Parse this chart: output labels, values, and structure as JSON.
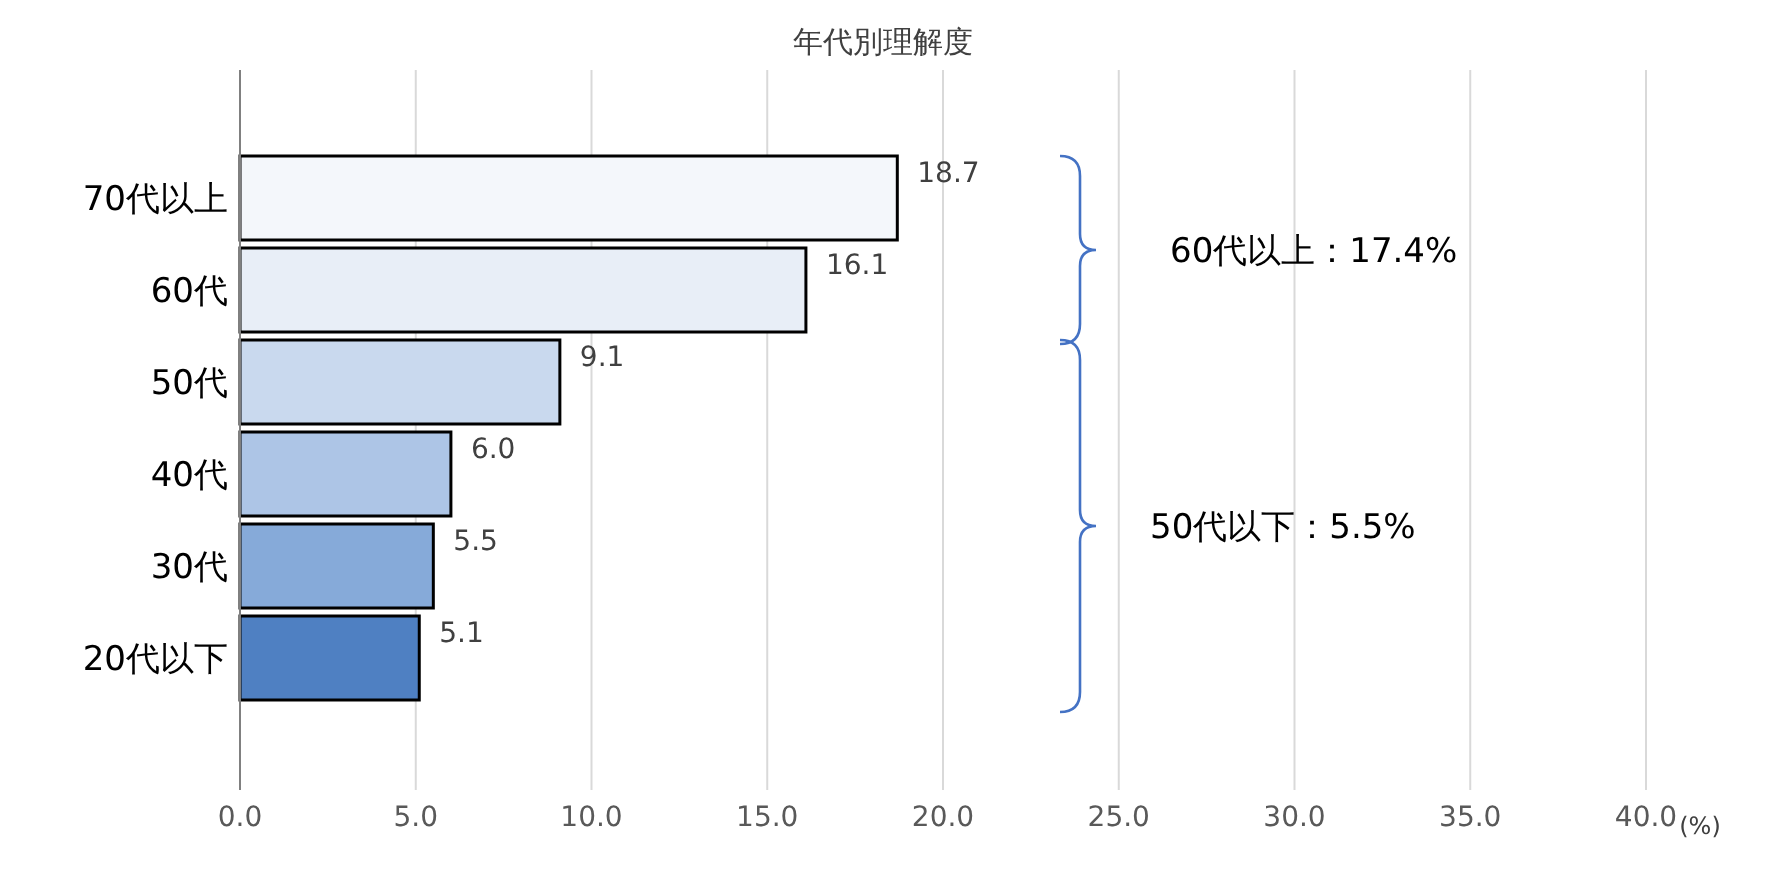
{
  "chart_data": {
    "type": "bar",
    "orientation": "horizontal",
    "title": "年代別理解度",
    "xlabel": "(%)",
    "categories": [
      "70代以上",
      "60代",
      "50代",
      "40代",
      "30代",
      "20代以下"
    ],
    "values": [
      18.7,
      16.1,
      9.1,
      6.0,
      5.5,
      5.1
    ],
    "value_labels": [
      "18.7",
      "16.1",
      "9.1",
      "6.0",
      "5.5",
      "5.1"
    ],
    "colors": [
      "#f4f7fb",
      "#e8eef7",
      "#c9d9ee",
      "#adc5e6",
      "#86aad9",
      "#4f80c2"
    ],
    "xlim": [
      0,
      40
    ],
    "xticks": [
      {
        "value": 0,
        "label": "0.0"
      },
      {
        "value": 5,
        "label": "5.0"
      },
      {
        "value": 10,
        "label": "10.0"
      },
      {
        "value": 15,
        "label": "15.0"
      },
      {
        "value": 20,
        "label": "20.0"
      },
      {
        "value": 25,
        "label": "25.0"
      },
      {
        "value": 30,
        "label": "30.0"
      },
      {
        "value": 35,
        "label": "35.0"
      },
      {
        "value": 40,
        "label": "40.0"
      }
    ],
    "grid": "x",
    "annotations": [
      "60代以上：17.4%",
      "50代以下：5.5%"
    ]
  }
}
